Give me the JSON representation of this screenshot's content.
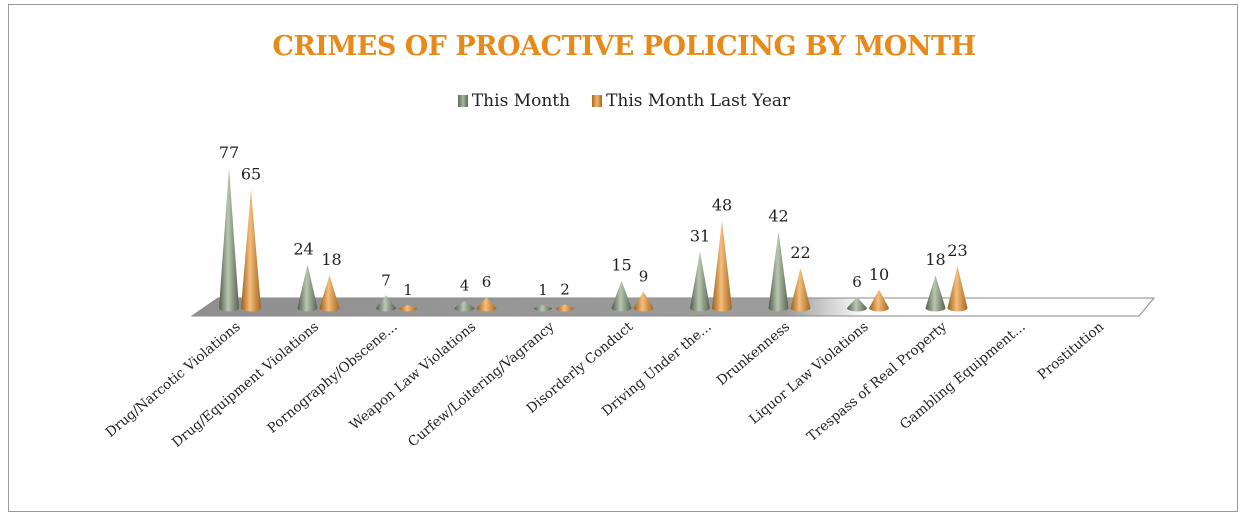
{
  "chart_data": {
    "type": "bar",
    "title": "CRIMES OF PROACTIVE POLICING BY MONTH",
    "categories": [
      "Drug/Narcotic Violations",
      "Drug/Equipment Violations",
      "Pornography/Obscene...",
      "Weapon Law Violations",
      "Curfew/Loitering/Vagrancy",
      "Disorderly Conduct",
      "Driving Under the...",
      "Drunkenness",
      "Liquor Law Violations",
      "Trespass of Real Property",
      "Gambling Equipment...",
      "Prostitution"
    ],
    "series": [
      {
        "name": "This Month",
        "color": "#7d8b76",
        "values": [
          77,
          24,
          7,
          4,
          1,
          15,
          31,
          42,
          6,
          18,
          null,
          null
        ]
      },
      {
        "name": "This Month Last Year",
        "color": "#d3903f",
        "values": [
          65,
          18,
          1,
          6,
          2,
          9,
          48,
          22,
          10,
          23,
          null,
          null
        ]
      }
    ],
    "value_labels_shown": true,
    "legend_position": "top",
    "grid": false,
    "style": "3d-cone"
  }
}
